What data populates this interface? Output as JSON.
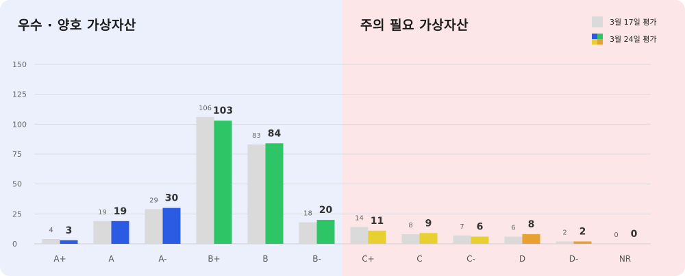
{
  "titles": {
    "good": "우수 · 양호 가상자산",
    "bad": "주의 필요 가상자산"
  },
  "legend": {
    "prev": "3월 17일 평가",
    "curr": "3월 24일 평가"
  },
  "colors": {
    "prev": "#dadada",
    "blue": "#2c5be3",
    "green": "#2ec567",
    "yellow": "#e8cf32",
    "orange": "#e8a030"
  },
  "chart_data": {
    "type": "bar",
    "categories": [
      "A+",
      "A",
      "A-",
      "B+",
      "B",
      "B-",
      "C+",
      "C",
      "C-",
      "D",
      "D-",
      "NR"
    ],
    "series": [
      {
        "name": "3월 17일 평가",
        "values": [
          4,
          19,
          29,
          106,
          83,
          18,
          14,
          8,
          7,
          6,
          2,
          0
        ]
      },
      {
        "name": "3월 24일 평가",
        "values": [
          3,
          19,
          30,
          103,
          84,
          20,
          11,
          9,
          6,
          8,
          2,
          0
        ]
      }
    ],
    "bar_color_keys": [
      "blue",
      "blue",
      "blue",
      "green",
      "green",
      "green",
      "yellow",
      "yellow",
      "yellow",
      "orange",
      "orange",
      "orange"
    ],
    "yticks": [
      0,
      25,
      50,
      75,
      100,
      125,
      150
    ],
    "ylim": [
      0,
      150
    ],
    "grid": true,
    "legend_position": "top-right"
  }
}
